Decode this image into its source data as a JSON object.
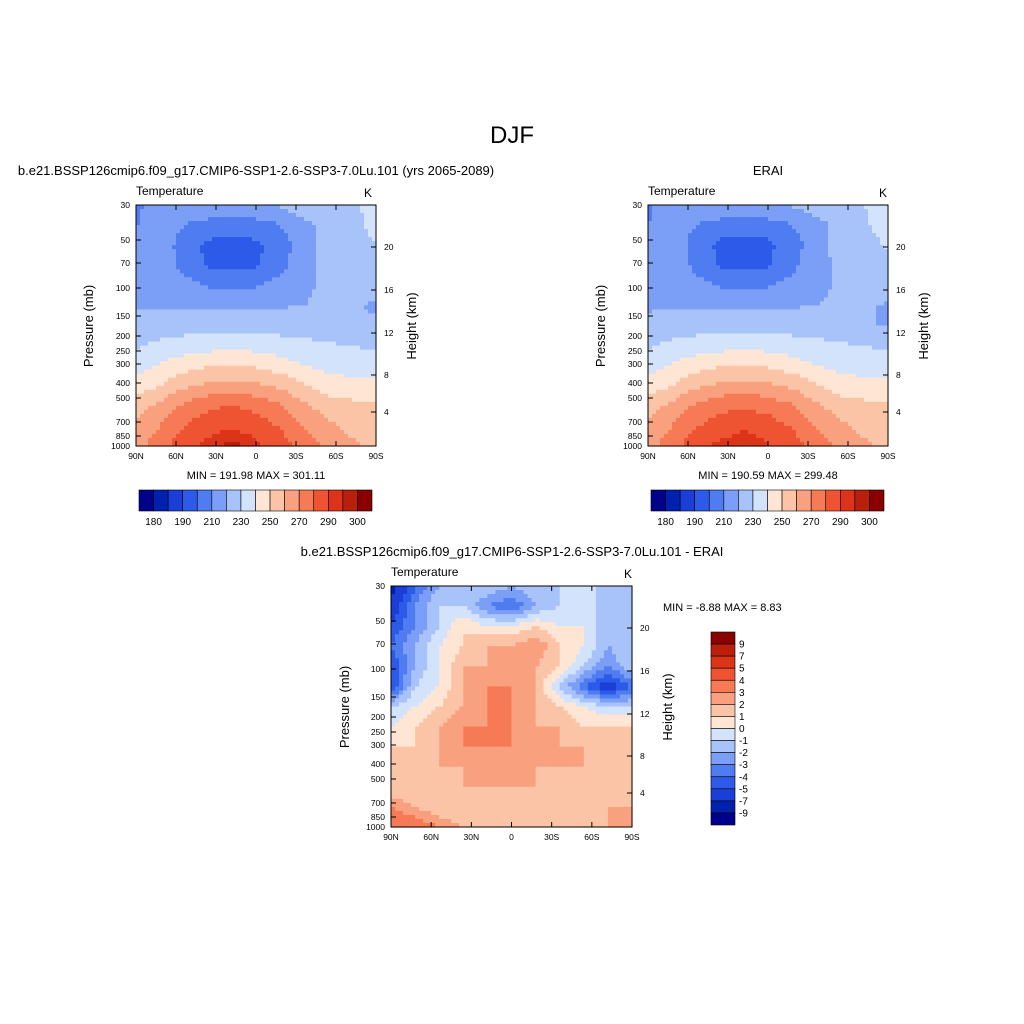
{
  "figure": {
    "title": "DJF",
    "palette": [
      "#00008c",
      "#0020b0",
      "#1a3ed6",
      "#2d5ae8",
      "#4f7cf0",
      "#7b9ef6",
      "#a8c2fa",
      "#d3e3fc",
      "#ffe6d4",
      "#fcc4a6",
      "#f9a07e",
      "#f67a55",
      "#ef5432",
      "#db3418",
      "#ba1f0c",
      "#8a0000"
    ]
  },
  "chart_data": [
    {
      "type": "heatmap",
      "panel_title": "b.e21.BSSP126cmip6.f09_g17.CMIP6-SSP1-2.6-SSP3-7.0Lu.101 (yrs 2065-2089)",
      "left_string": "Temperature",
      "right_string": "K",
      "xlabel": "",
      "ylabel": "Pressure (mb)",
      "ylabel_right": "Height (km)",
      "x_ticks": [
        "90N",
        "60N",
        "30N",
        "0",
        "30S",
        "60S",
        "90S"
      ],
      "y_ticks": [
        "30",
        "50",
        "70",
        "100",
        "150",
        "200",
        "250",
        "300",
        "400",
        "500",
        "700",
        "850",
        "1000"
      ],
      "y_right_ticks": [
        "20",
        "16",
        "12",
        "8",
        "4"
      ],
      "min_max_text": "MIN = 191.98   MAX = 301.11",
      "colorbar_orientation": "horizontal",
      "colorbar_labels": [
        "180",
        "190",
        "210",
        "230",
        "250",
        "270",
        "290",
        "300"
      ],
      "levels": [
        180,
        185,
        190,
        200,
        210,
        220,
        230,
        240,
        250,
        260,
        270,
        280,
        290,
        295,
        300
      ],
      "x_values": [
        90,
        60,
        30,
        0,
        -30,
        -60,
        -90
      ],
      "p_values": [
        30,
        50,
        70,
        100,
        150,
        200,
        250,
        300,
        400,
        500,
        700,
        850,
        1000
      ],
      "z": [
        [
          207,
          218,
          221,
          221,
          221,
          221,
          221,
          228,
          228,
          229,
          232
        ],
        [
          209,
          217,
          210,
          205,
          204,
          205,
          210,
          217,
          224,
          228,
          232
        ],
        [
          215,
          218,
          204,
          198,
          197,
          198,
          204,
          217,
          224,
          226,
          230
        ],
        [
          219,
          218,
          206,
          199,
          197,
          199,
          206,
          218,
          222,
          223,
          226
        ],
        [
          218,
          218,
          214,
          209,
          207,
          209,
          214,
          219,
          221,
          222,
          223
        ],
        [
          219,
          219,
          219,
          219,
          219,
          219,
          219,
          220,
          221,
          221,
          219
        ],
        [
          224,
          225,
          226,
          227,
          227,
          227,
          226,
          226,
          226,
          221,
          221
        ],
        [
          229,
          232,
          234,
          236,
          237,
          236,
          234,
          232,
          231,
          230,
          228
        ],
        [
          235,
          241,
          246,
          249,
          250,
          249,
          245,
          240,
          237,
          236,
          236
        ],
        [
          244,
          250,
          258,
          262,
          264,
          262,
          258,
          251,
          245,
          243,
          243
        ],
        [
          255,
          263,
          272,
          278,
          280,
          277,
          271,
          262,
          255,
          253,
          252
        ],
        [
          262,
          270,
          280,
          286,
          289,
          286,
          279,
          270,
          262,
          257,
          255
        ],
        [
          266,
          276,
          287,
          293,
          297,
          292,
          285,
          276,
          267,
          262,
          258
        ]
      ]
    },
    {
      "type": "heatmap",
      "panel_title": "ERAI",
      "left_string": "Temperature",
      "right_string": "K",
      "xlabel": "",
      "ylabel": "Pressure (mb)",
      "ylabel_right": "Height (km)",
      "x_ticks": [
        "90N",
        "60N",
        "30N",
        "0",
        "30S",
        "60S",
        "90S"
      ],
      "y_ticks": [
        "30",
        "50",
        "70",
        "100",
        "150",
        "200",
        "250",
        "300",
        "400",
        "500",
        "700",
        "850",
        "1000"
      ],
      "y_right_ticks": [
        "20",
        "16",
        "12",
        "8",
        "4"
      ],
      "min_max_text": "MIN = 190.59   MAX = 299.48",
      "colorbar_orientation": "horizontal",
      "colorbar_labels": [
        "180",
        "190",
        "210",
        "230",
        "250",
        "270",
        "290",
        "300"
      ],
      "levels": [
        180,
        185,
        190,
        200,
        210,
        220,
        230,
        240,
        250,
        260,
        270,
        280,
        290,
        295,
        300
      ],
      "x_values": [
        90,
        60,
        30,
        0,
        -30,
        -60,
        -90
      ],
      "p_values": [
        30,
        50,
        70,
        100,
        150,
        200,
        250,
        300,
        400,
        500,
        700,
        850,
        1000
      ],
      "z": [
        [
          208,
          216,
          220,
          221,
          221,
          221,
          221,
          226,
          229,
          230,
          233
        ],
        [
          210,
          216,
          210,
          205,
          204,
          205,
          210,
          216,
          223,
          229,
          233
        ],
        [
          215,
          217,
          205,
          198,
          196,
          198,
          205,
          216,
          223,
          227,
          231
        ],
        [
          218,
          217,
          207,
          199,
          197,
          199,
          207,
          217,
          222,
          224,
          228
        ],
        [
          217,
          217,
          214,
          209,
          207,
          209,
          214,
          218,
          221,
          223,
          225
        ],
        [
          218,
          219,
          219,
          219,
          219,
          219,
          219,
          220,
          221,
          221,
          219
        ],
        [
          224,
          225,
          226,
          227,
          227,
          227,
          226,
          226,
          226,
          221,
          219
        ],
        [
          229,
          232,
          234,
          236,
          237,
          236,
          234,
          232,
          231,
          230,
          228
        ],
        [
          235,
          241,
          246,
          249,
          250,
          249,
          245,
          240,
          237,
          236,
          236
        ],
        [
          244,
          250,
          258,
          262,
          264,
          262,
          258,
          251,
          245,
          243,
          243
        ],
        [
          255,
          263,
          272,
          277,
          279,
          276,
          271,
          262,
          255,
          253,
          252
        ],
        [
          262,
          270,
          279,
          285,
          288,
          285,
          279,
          270,
          262,
          257,
          255
        ],
        [
          266,
          276,
          287,
          292,
          296,
          291,
          285,
          276,
          267,
          262,
          258
        ]
      ]
    },
    {
      "type": "heatmap",
      "panel_title": "b.e21.BSSP126cmip6.f09_g17.CMIP6-SSP1-2.6-SSP3-7.0Lu.101 - ERAI",
      "left_string": "Temperature",
      "right_string": "K",
      "xlabel": "",
      "ylabel": "Pressure (mb)",
      "ylabel_right": "Height (km)",
      "x_ticks": [
        "90N",
        "60N",
        "30N",
        "0",
        "30S",
        "60S",
        "90S"
      ],
      "y_ticks": [
        "30",
        "50",
        "70",
        "100",
        "150",
        "200",
        "250",
        "300",
        "400",
        "500",
        "700",
        "850",
        "1000"
      ],
      "y_right_ticks": [
        "20",
        "16",
        "12",
        "8",
        "4"
      ],
      "min_max_text": "MIN =  -8.88   MAX =   8.83",
      "colorbar_orientation": "vertical",
      "colorbar_labels": [
        "9",
        "7",
        "5",
        "4",
        "3",
        "2",
        "1",
        "0",
        "-1",
        "-2",
        "-3",
        "-4",
        "-5",
        "-7",
        "-9"
      ],
      "levels": [
        -9,
        -7,
        -5,
        -4,
        -3,
        -2,
        -1,
        0,
        1,
        2,
        3,
        4,
        5,
        7,
        9
      ],
      "x_values": [
        90,
        60,
        30,
        0,
        -30,
        -60,
        -90
      ],
      "p_values": [
        30,
        50,
        70,
        100,
        150,
        200,
        250,
        300,
        400,
        500,
        700,
        850,
        1000
      ],
      "z": [
        [
          -8,
          -4,
          -2,
          -1,
          -1,
          -2,
          -1,
          -1,
          -1,
          -1,
          -1
        ],
        [
          -6,
          -3,
          -1,
          -1,
          -3,
          -4,
          -2,
          -1,
          0,
          -2,
          -1
        ],
        [
          -5,
          -3,
          -1,
          1,
          0,
          0,
          1,
          0,
          0,
          -2,
          -1
        ],
        [
          -4,
          -2,
          0,
          1,
          2,
          2,
          3,
          1,
          0,
          -2,
          -1
        ],
        [
          -5,
          -2,
          0,
          2,
          2,
          2,
          2,
          1,
          -1,
          -3,
          -1
        ],
        [
          -5,
          -1,
          0,
          2,
          3,
          3,
          2,
          -1,
          -4,
          -6,
          -4
        ],
        [
          -1,
          0,
          1,
          2,
          3,
          3,
          2,
          1,
          0,
          -1,
          -1
        ],
        [
          0,
          1,
          2,
          3,
          3,
          3,
          2,
          2,
          1,
          1,
          1
        ],
        [
          1,
          1,
          2,
          3,
          3,
          3,
          2,
          2,
          2,
          1,
          1
        ],
        [
          1,
          1,
          2,
          2,
          2,
          2,
          2,
          2,
          2,
          1,
          1
        ],
        [
          1,
          1,
          1,
          2,
          2,
          2,
          2,
          1,
          1,
          1,
          2
        ],
        [
          3,
          2,
          1,
          1,
          1,
          1,
          1,
          1,
          1,
          2,
          2
        ],
        [
          4,
          4,
          3,
          2,
          1,
          1,
          1,
          1,
          1,
          2,
          3
        ]
      ]
    }
  ]
}
